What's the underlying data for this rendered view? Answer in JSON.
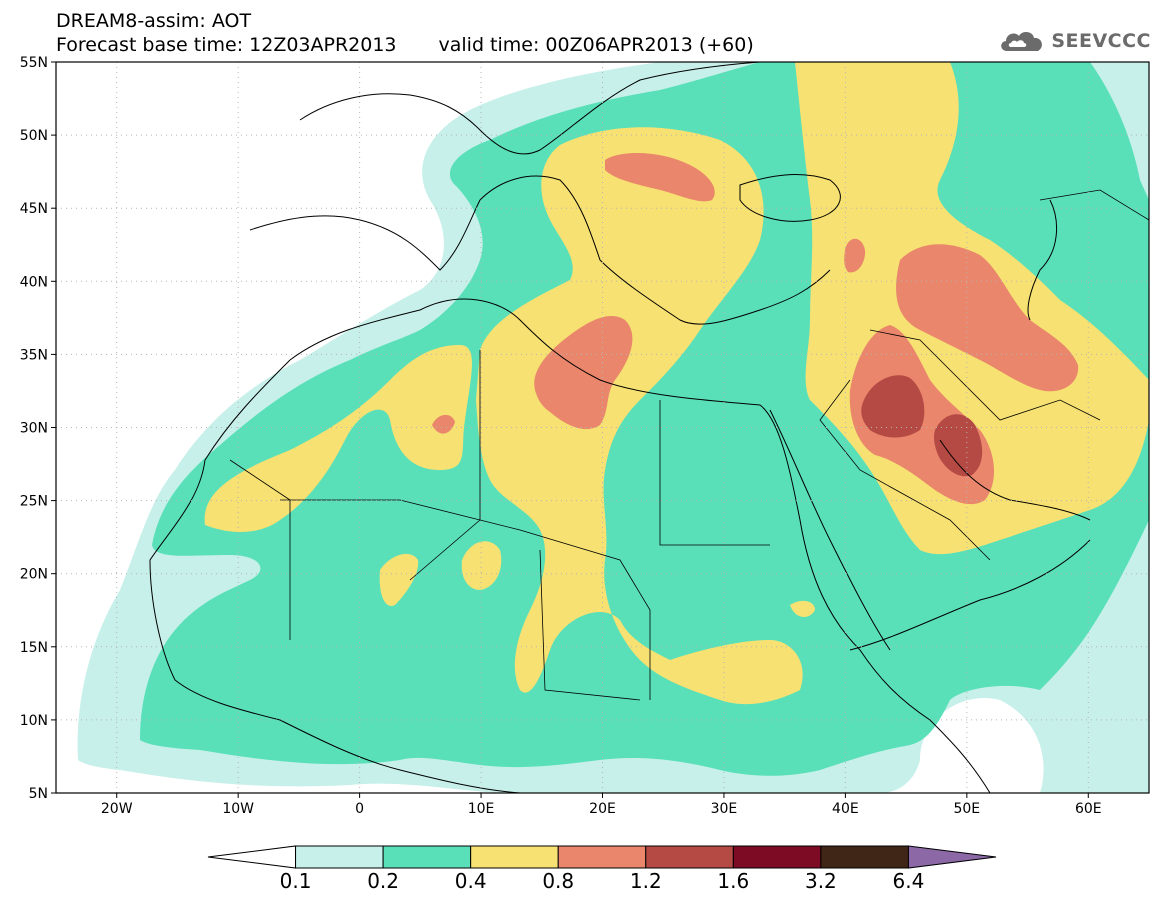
{
  "header": {
    "title": "DREAM8-assim: AOT",
    "base_time": "Forecast base time: 12Z03APR2013",
    "valid_time": "valid time: 00Z06APR2013 (+60)"
  },
  "logo": {
    "text": "SEEVCCC",
    "icon": "cloud-icon"
  },
  "axes": {
    "lat_labels": [
      "55N",
      "50N",
      "45N",
      "40N",
      "35N",
      "30N",
      "25N",
      "20N",
      "15N",
      "10N",
      "5N"
    ],
    "lon_labels": [
      "20W",
      "10W",
      "0",
      "10E",
      "20E",
      "30E",
      "40E",
      "50E",
      "60E"
    ],
    "lat_range": [
      5,
      55
    ],
    "lon_range": [
      -25,
      65
    ]
  },
  "colorbar": {
    "labels": [
      "0.1",
      "0.2",
      "0.4",
      "0.8",
      "1.2",
      "1.6",
      "3.2",
      "6.4"
    ],
    "colors": [
      "#ffffff",
      "#c6f0e9",
      "#5ae0b9",
      "#f7e172",
      "#e9866b",
      "#b54a45",
      "#7d0b24",
      "#3f2616",
      "#8c68a7"
    ]
  },
  "fill_colors": {
    "c1": "#c6f0e9",
    "c2": "#5ae0b9",
    "c3": "#f7e172",
    "c4": "#e9866b",
    "c5": "#b54a45",
    "c6": "#8a3a36"
  }
}
